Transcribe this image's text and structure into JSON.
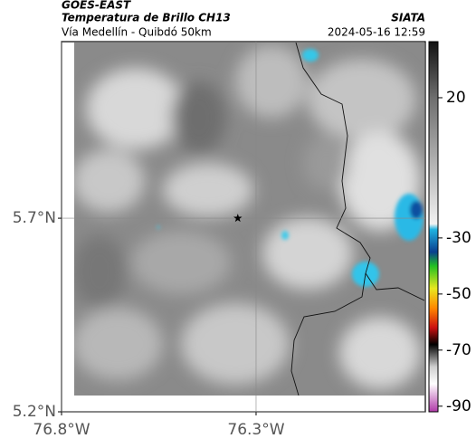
{
  "map": {
    "header": {
      "source": "GOES-EAST",
      "title": "Temperatura de Brillo CH13",
      "subtitle": "Vía Medellín - Quibdó 50km",
      "brand": "SIATA",
      "datetime": "2024-05-16 12:59"
    },
    "xlim": [
      -76.8,
      -75.865
    ],
    "ylim": [
      5.2,
      6.156
    ],
    "xticks": [
      {
        "value": -76.8,
        "label": "76.8°W"
      },
      {
        "value": -76.3,
        "label": "76.3°W"
      }
    ],
    "yticks": [
      {
        "value": 5.2,
        "label": "5.2°N"
      },
      {
        "value": 5.7,
        "label": "5.7°N"
      }
    ],
    "grid": true,
    "marker": {
      "lon": -76.347,
      "lat": 5.7
    },
    "colorbar": {
      "lim": [
        -92,
        40
      ],
      "ticks": [
        20,
        -30,
        -50,
        -70,
        -90
      ],
      "stops": [
        {
          "value": 40,
          "color": "#111111"
        },
        {
          "value": 20,
          "color": "#6e6e6e"
        },
        {
          "value": -25,
          "color": "#f2f2f2"
        },
        {
          "value": -27,
          "color": "#1fb3e0"
        },
        {
          "value": -35,
          "color": "#0a3f8f"
        },
        {
          "value": -40,
          "color": "#22c022"
        },
        {
          "value": -48,
          "color": "#e8e820"
        },
        {
          "value": -55,
          "color": "#ff8800"
        },
        {
          "value": -62,
          "color": "#cc1111"
        },
        {
          "value": -68,
          "color": "#000000"
        },
        {
          "value": -76,
          "color": "#d0d0d0"
        },
        {
          "value": -82,
          "color": "#ffffff"
        },
        {
          "value": -92,
          "color": "#b03aa8"
        }
      ]
    }
  }
}
